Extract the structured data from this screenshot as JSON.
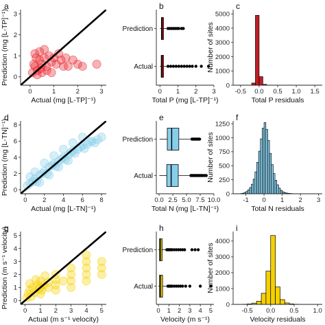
{
  "chart_data": [
    {
      "id": "a",
      "type": "scatter",
      "letter": "a",
      "xlabel": "Actual (mg [L-TP]⁻¹)",
      "ylabel": "Prediction (mg [L-TP]⁻¹)",
      "xlim": [
        -0.4,
        3.2
      ],
      "ylim": [
        -0.4,
        3.2
      ],
      "xticks": [
        0,
        1,
        2,
        3
      ],
      "yticks": [
        0,
        1,
        2,
        3
      ],
      "color": "#e8222a",
      "identity_line": true,
      "points": [
        [
          0.1,
          0.2
        ],
        [
          0.2,
          0.5
        ],
        [
          0.3,
          0.3
        ],
        [
          0.4,
          0.8
        ],
        [
          0.5,
          0.6
        ],
        [
          0.6,
          0.9
        ],
        [
          0.7,
          0.5
        ],
        [
          0.8,
          1.0
        ],
        [
          0.9,
          0.7
        ],
        [
          1.0,
          0.9
        ],
        [
          1.1,
          0.6
        ],
        [
          1.2,
          1.1
        ],
        [
          1.3,
          0.8
        ],
        [
          1.5,
          0.9
        ],
        [
          1.6,
          0.5
        ],
        [
          1.8,
          0.8
        ],
        [
          2.0,
          0.6
        ],
        [
          2.2,
          0.5
        ],
        [
          2.8,
          0.6
        ],
        [
          0.2,
          1.1
        ],
        [
          0.4,
          1.2
        ],
        [
          0.6,
          1.3
        ],
        [
          0.3,
          0.1
        ],
        [
          0.5,
          0.2
        ],
        [
          0.7,
          0.3
        ],
        [
          0.9,
          0.2
        ],
        [
          1.4,
          0.5
        ],
        [
          0.15,
          0.6
        ],
        [
          0.25,
          0.9
        ],
        [
          0.45,
          0.4
        ]
      ]
    },
    {
      "id": "b",
      "type": "boxplot",
      "letter": "b",
      "xlabel": "Total P (mg [L-TP]⁻¹)",
      "xlim": [
        -0.2,
        3.0
      ],
      "xticks": [
        0,
        1,
        2,
        3
      ],
      "color": "#e8222a",
      "categories": [
        "Prediction",
        "Actual"
      ],
      "boxes": [
        {
          "label": "Prediction",
          "q1": 0.08,
          "median": 0.12,
          "q3": 0.2,
          "whisker_low": 0.0,
          "whisker_high": 0.38,
          "outliers": [
            0.45,
            0.55,
            0.65,
            0.75,
            0.85,
            0.95,
            1.05,
            1.2,
            1.3
          ]
        },
        {
          "label": "Actual",
          "q1": 0.07,
          "median": 0.12,
          "q3": 0.2,
          "whisker_low": 0.0,
          "whisker_high": 0.38,
          "outliers": [
            0.45,
            0.6,
            0.75,
            0.9,
            1.05,
            1.2,
            1.35,
            1.5,
            1.65,
            1.8,
            2.0,
            2.3,
            2.7
          ]
        }
      ]
    },
    {
      "id": "c",
      "type": "histogram",
      "letter": "c",
      "xlabel": "Total P residuals",
      "ylabel": "Number of sites",
      "xlim": [
        -0.7,
        1.7
      ],
      "ylim": [
        0,
        5300
      ],
      "xticks": [
        -0.5,
        0.0,
        0.5,
        1.0,
        1.5
      ],
      "yticks": [
        0,
        1000,
        2000,
        3000,
        4000,
        5000
      ],
      "color": "#c41c24",
      "bin_edges": [
        -0.3,
        -0.2,
        -0.1,
        0.0,
        0.1,
        0.2,
        0.3
      ],
      "counts": [
        5,
        150,
        4900,
        600,
        60,
        10
      ]
    },
    {
      "id": "d",
      "type": "scatter",
      "letter": "d",
      "xlabel": "Actual (mg [L-TN]⁻¹)",
      "ylabel": "Prediction (mg [L-TN]⁻¹)",
      "xlim": [
        -0.5,
        8.5
      ],
      "ylim": [
        -0.5,
        8.5
      ],
      "xticks": [
        0,
        2,
        4,
        6,
        8
      ],
      "yticks": [
        0,
        2,
        4,
        6,
        8
      ],
      "color": "#87ceeb",
      "identity_line": true,
      "points": [
        [
          0.2,
          0.5
        ],
        [
          0.5,
          0.8
        ],
        [
          0.8,
          1.0
        ],
        [
          1.0,
          1.3
        ],
        [
          1.2,
          1.0
        ],
        [
          1.5,
          1.8
        ],
        [
          1.8,
          2.0
        ],
        [
          2.0,
          2.3
        ],
        [
          2.3,
          2.0
        ],
        [
          2.5,
          2.8
        ],
        [
          2.8,
          3.0
        ],
        [
          3.0,
          3.2
        ],
        [
          3.2,
          2.9
        ],
        [
          3.5,
          3.5
        ],
        [
          3.8,
          3.8
        ],
        [
          4.0,
          4.0
        ],
        [
          4.2,
          3.7
        ],
        [
          4.5,
          4.3
        ],
        [
          4.8,
          4.6
        ],
        [
          5.0,
          4.8
        ],
        [
          5.2,
          4.5
        ],
        [
          5.5,
          5.0
        ],
        [
          5.8,
          5.3
        ],
        [
          6.0,
          5.5
        ],
        [
          6.2,
          5.1
        ],
        [
          6.5,
          5.6
        ],
        [
          6.8,
          5.9
        ],
        [
          7.0,
          6.0
        ],
        [
          7.3,
          5.8
        ],
        [
          7.6,
          6.2
        ],
        [
          8.0,
          6.5
        ],
        [
          1.0,
          2.2
        ],
        [
          2.0,
          3.3
        ],
        [
          3.0,
          4.2
        ],
        [
          4.0,
          5.0
        ],
        [
          5.0,
          5.8
        ],
        [
          6.0,
          6.5
        ],
        [
          2.5,
          1.8
        ],
        [
          3.5,
          2.8
        ],
        [
          4.5,
          3.6
        ],
        [
          1.5,
          0.9
        ],
        [
          0.5,
          1.6
        ]
      ]
    },
    {
      "id": "e",
      "type": "boxplot",
      "letter": "e",
      "xlabel": "Total N (mg [L-TN]⁻¹)",
      "xlim": [
        -0.5,
        10.0
      ],
      "xticks": [
        0.0,
        2.5,
        5.0,
        7.5,
        10.0
      ],
      "color": "#87ceeb",
      "categories": [
        "Prediction",
        "Actual"
      ],
      "boxes": [
        {
          "label": "Prediction",
          "q1": 1.5,
          "median": 2.3,
          "q3": 3.6,
          "whisker_low": 0.1,
          "whisker_high": 5.8,
          "outliers": [
            6.0,
            6.2,
            6.4,
            6.6,
            6.8,
            7.0,
            7.2,
            7.4
          ]
        },
        {
          "label": "Actual",
          "q1": 1.4,
          "median": 2.2,
          "q3": 3.5,
          "whisker_low": 0.05,
          "whisker_high": 5.6,
          "outliers": [
            5.8,
            6.0,
            6.2,
            6.4,
            6.6,
            6.8,
            7.0,
            7.2,
            7.4,
            7.6,
            7.8,
            8.0,
            8.3,
            8.6
          ]
        }
      ]
    },
    {
      "id": "f",
      "type": "histogram",
      "letter": "f",
      "xlabel": "Total N residuals",
      "ylabel": "Number of sites",
      "xlim": [
        -1.7,
        3.2
      ],
      "ylim": [
        0,
        1300
      ],
      "xticks": [
        -1,
        0,
        1,
        2,
        3
      ],
      "yticks": [
        0,
        250,
        500,
        750,
        1000,
        1250
      ],
      "color": "#87ceeb",
      "bin_edges": [
        -1.3,
        -1.2,
        -1.1,
        -1.0,
        -0.9,
        -0.8,
        -0.7,
        -0.6,
        -0.5,
        -0.4,
        -0.3,
        -0.2,
        -0.1,
        0.0,
        0.1,
        0.2,
        0.3,
        0.4,
        0.5,
        0.6,
        0.7,
        0.8,
        0.9,
        1.0,
        1.1,
        1.2,
        1.3,
        1.4,
        1.5,
        1.6
      ],
      "counts": [
        5,
        10,
        20,
        40,
        70,
        110,
        170,
        260,
        390,
        560,
        760,
        980,
        1170,
        1270,
        1150,
        950,
        720,
        520,
        360,
        240,
        160,
        100,
        60,
        35,
        20,
        12,
        8,
        5,
        3
      ]
    },
    {
      "id": "g",
      "type": "scatter",
      "letter": "g",
      "xlabel": "Actual (m s⁻¹ velocity)",
      "ylabel": "Prediction (m s⁻¹ velocity)",
      "xlim": [
        -0.3,
        5.3
      ],
      "ylim": [
        -0.3,
        5.3
      ],
      "xticks": [
        0,
        1,
        2,
        3,
        4,
        5
      ],
      "yticks": [
        0,
        1,
        2,
        3,
        4,
        5
      ],
      "color": "#f5d000",
      "identity_line": true,
      "points": [
        [
          0.1,
          0.2
        ],
        [
          0.2,
          0.5
        ],
        [
          0.3,
          0.8
        ],
        [
          0.4,
          0.3
        ],
        [
          0.5,
          1.0
        ],
        [
          0.6,
          0.6
        ],
        [
          0.8,
          1.2
        ],
        [
          0.9,
          0.9
        ],
        [
          1.0,
          0.5
        ],
        [
          1.0,
          1.0
        ],
        [
          1.0,
          1.5
        ],
        [
          1.1,
          0.8
        ],
        [
          1.2,
          1.2
        ],
        [
          1.5,
          1.0
        ],
        [
          1.5,
          1.4
        ],
        [
          2.0,
          0.8
        ],
        [
          2.0,
          1.2
        ],
        [
          2.0,
          1.6
        ],
        [
          2.0,
          2.0
        ],
        [
          2.5,
          1.5
        ],
        [
          3.0,
          1.0
        ],
        [
          3.0,
          1.5
        ],
        [
          3.0,
          2.0
        ],
        [
          3.0,
          2.5
        ],
        [
          4.0,
          1.5
        ],
        [
          4.0,
          2.0
        ],
        [
          4.0,
          2.5
        ],
        [
          4.0,
          3.0
        ],
        [
          4.0,
          3.5
        ],
        [
          5.0,
          2.0
        ],
        [
          5.0,
          2.5
        ],
        [
          5.0,
          3.0
        ],
        [
          0.3,
          1.3
        ],
        [
          0.7,
          1.6
        ],
        [
          1.3,
          1.9
        ]
      ]
    },
    {
      "id": "h",
      "type": "boxplot",
      "letter": "h",
      "xlabel": "Velocity (m s⁻¹)",
      "xlim": [
        -0.2,
        5.3
      ],
      "xticks": [
        0,
        1,
        2,
        3,
        4,
        5
      ],
      "color": "#f5d000",
      "categories": [
        "Prediction",
        "Actual"
      ],
      "boxes": [
        {
          "label": "Prediction",
          "q1": 0.1,
          "median": 0.2,
          "q3": 0.35,
          "whisker_low": 0.0,
          "whisker_high": 0.7,
          "outliers": [
            0.8,
            0.9,
            1.0,
            1.1,
            1.2,
            1.3,
            1.5,
            1.7,
            1.9,
            2.1,
            2.3,
            2.5,
            3.2,
            3.5,
            3.8
          ]
        },
        {
          "label": "Actual",
          "q1": 0.1,
          "median": 0.2,
          "q3": 0.4,
          "whisker_low": 0.0,
          "whisker_high": 0.8,
          "outliers": [
            0.9,
            1.0,
            1.1,
            1.2,
            1.3,
            1.5,
            1.7,
            1.9,
            2.1,
            2.3,
            2.6,
            3.0,
            4.0,
            5.0
          ]
        }
      ]
    },
    {
      "id": "i",
      "type": "histogram",
      "letter": "i",
      "xlabel": "Velocity residuals",
      "ylabel": "Number of sites",
      "xlim": [
        -0.8,
        1.1
      ],
      "ylim": [
        0,
        4600
      ],
      "xticks": [
        -0.5,
        0.0,
        0.5,
        1.0
      ],
      "yticks": [
        0,
        1000,
        2000,
        3000,
        4000
      ],
      "color": "#f5d000",
      "bin_edges": [
        -0.6,
        -0.5,
        -0.4,
        -0.3,
        -0.2,
        -0.1,
        0.0,
        0.1,
        0.2,
        0.3,
        0.4,
        0.5,
        0.6
      ],
      "counts": [
        10,
        30,
        80,
        200,
        700,
        2100,
        4350,
        1100,
        300,
        90,
        30,
        10
      ]
    }
  ]
}
